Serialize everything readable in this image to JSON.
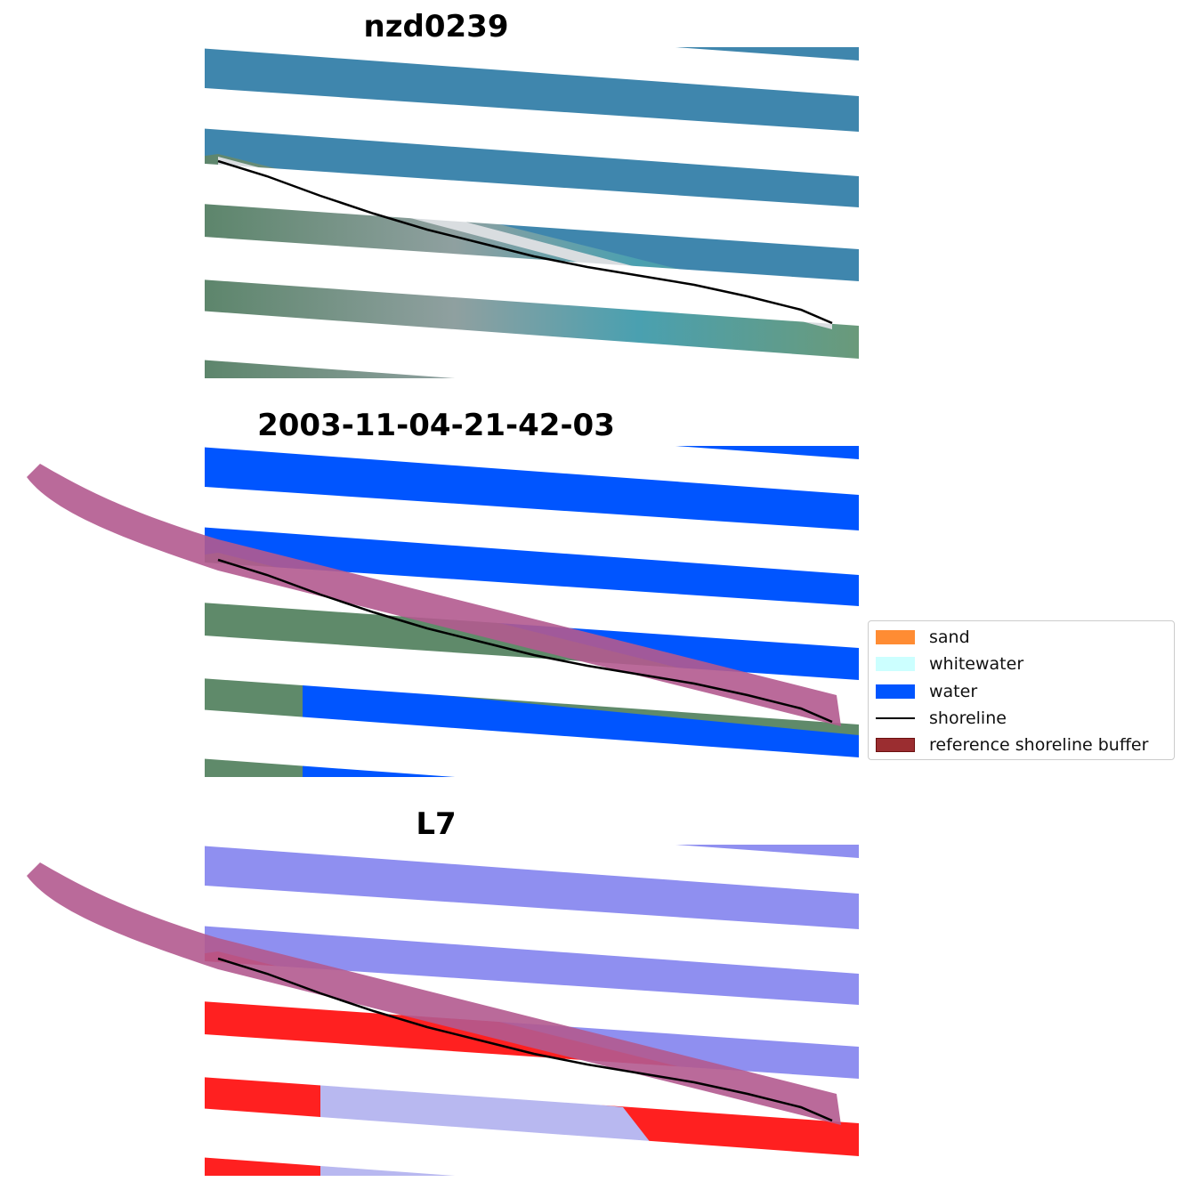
{
  "panels": [
    {
      "title": "nzd0239",
      "kind": "rgb"
    },
    {
      "title": "2003-11-04-21-42-03",
      "kind": "classified"
    },
    {
      "title": "L7",
      "kind": "index"
    }
  ],
  "legend": {
    "items": [
      {
        "label": "sand",
        "color": "#ff8c33"
      },
      {
        "label": "whitewater",
        "color": "#ccffff"
      },
      {
        "label": "water",
        "color": "#0055ff"
      },
      {
        "label": "shoreline",
        "color": "#000000"
      },
      {
        "label": "reference shoreline buffer",
        "color": "#9b2d30"
      }
    ]
  },
  "colors": {
    "ocean": "#3f86ad",
    "land": "#5f8a6a",
    "water_class": "#0055ff",
    "buffer": "#b35a8f",
    "index_water": "#8f8ff0",
    "index_land": "#ff2020"
  }
}
